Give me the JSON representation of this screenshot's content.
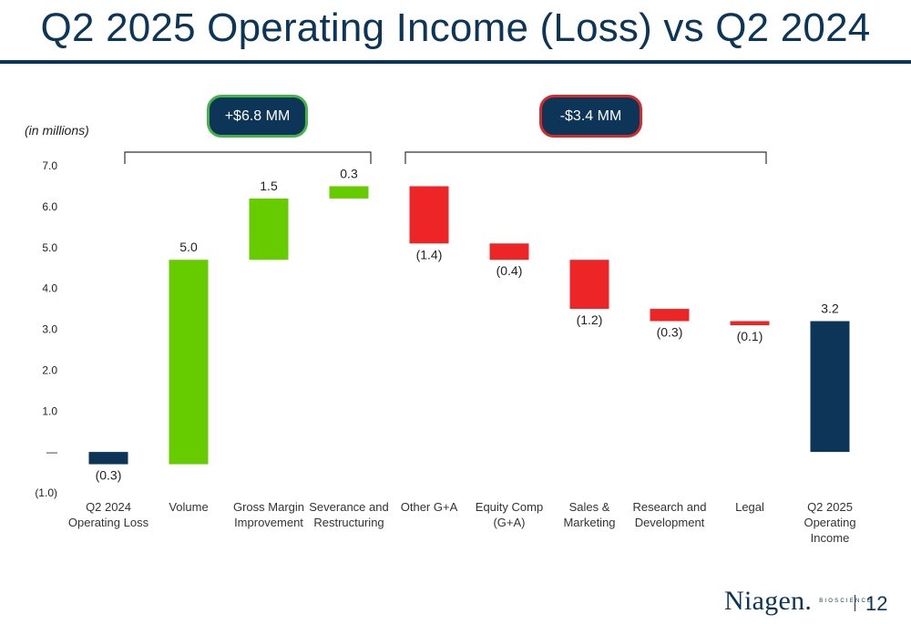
{
  "slide": {
    "title": "Q2 2025 Operating Income (Loss) vs Q2 2024",
    "units_label": "(in millions)",
    "callout_positive": "+$6.8 MM",
    "callout_negative": "-$3.4 MM",
    "page_number": "12"
  },
  "logo": {
    "wordmark": "Niagen.",
    "subtext": "BIOSCIENCE"
  },
  "colors": {
    "navy": "#0c3557",
    "green": "#66cc00",
    "red": "#ee2527",
    "pill_green_border": "#46b347",
    "pill_red_border": "#d62a2a"
  },
  "chart_data": {
    "type": "waterfall",
    "title": "Q2 2025 Operating Income (Loss) vs Q2 2024",
    "ylabel": "(in millions)",
    "ylim": [
      -1.0,
      7.0
    ],
    "y_ticks": [
      -1.0,
      0,
      1.0,
      2.0,
      3.0,
      4.0,
      5.0,
      6.0,
      7.0
    ],
    "y_tick_labels": [
      "(1.0)",
      "—",
      "1.0",
      "2.0",
      "3.0",
      "4.0",
      "5.0",
      "6.0",
      "7.0"
    ],
    "categories": [
      "Q2 2024\nOperating Loss",
      "Volume",
      "Gross Margin\nImprovement",
      "Severance and\nRestructuring",
      "Other G+A",
      "Equity Comp\n(G+A)",
      "Sales &\nMarketing",
      "Research and\nDevelopment",
      "Legal",
      "Q2 2025\nOperating\nIncome"
    ],
    "bars": [
      {
        "kind": "total",
        "base": 0,
        "end": -0.3,
        "label": "(0.3)"
      },
      {
        "kind": "increase",
        "base": -0.3,
        "end": 4.7,
        "label": "5.0"
      },
      {
        "kind": "increase",
        "base": 4.7,
        "end": 6.2,
        "label": "1.5"
      },
      {
        "kind": "increase",
        "base": 6.2,
        "end": 6.5,
        "label": "0.3"
      },
      {
        "kind": "decrease",
        "base": 6.5,
        "end": 5.1,
        "label": "(1.4)"
      },
      {
        "kind": "decrease",
        "base": 5.1,
        "end": 4.7,
        "label": "(0.4)"
      },
      {
        "kind": "decrease",
        "base": 4.7,
        "end": 3.5,
        "label": "(1.2)"
      },
      {
        "kind": "decrease",
        "base": 3.5,
        "end": 3.2,
        "label": "(0.3)"
      },
      {
        "kind": "decrease",
        "base": 3.2,
        "end": 3.1,
        "label": "(0.1)"
      },
      {
        "kind": "total",
        "base": 0,
        "end": 3.2,
        "label": "3.2"
      }
    ],
    "brackets": [
      {
        "from_category": 0,
        "to_category": 3,
        "callout": "+$6.8 MM"
      },
      {
        "from_category": 4,
        "to_category": 8,
        "callout": "-$3.4 MM"
      }
    ]
  }
}
